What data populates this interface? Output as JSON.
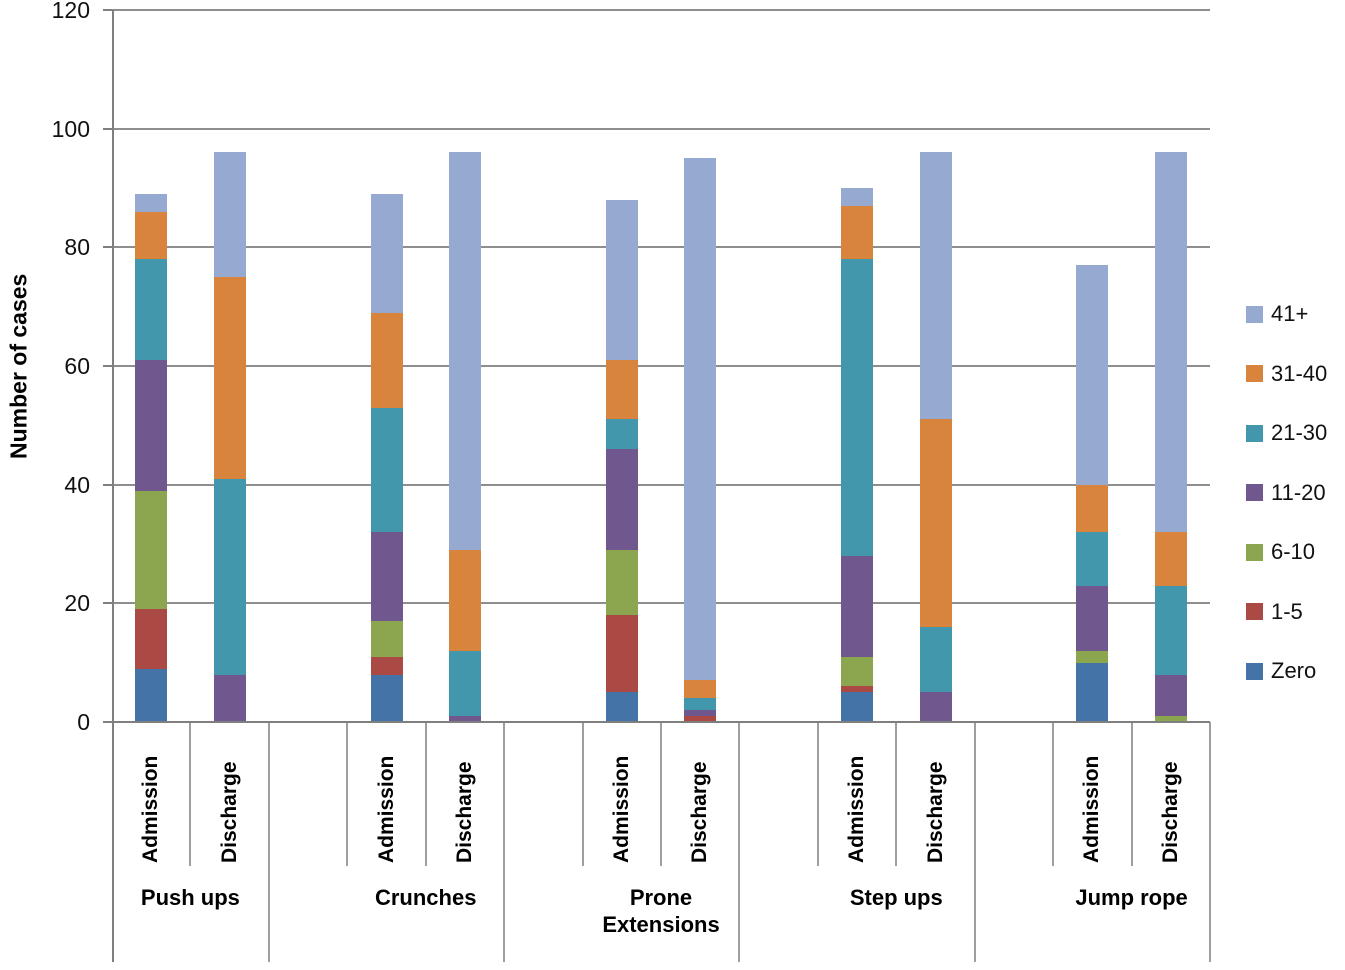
{
  "chart_data": {
    "type": "bar",
    "stacked": true,
    "ylabel": "Number of cases",
    "ylim": [
      0,
      120
    ],
    "yticks": [
      0,
      20,
      40,
      60,
      80,
      100,
      120
    ],
    "grid": true,
    "legend_position": "right",
    "groups": [
      "Push ups",
      "Crunches",
      "Prone Extensions",
      "Step ups",
      "Jump rope"
    ],
    "conditions": [
      "Admission",
      "Discharge"
    ],
    "series": [
      {
        "name": "Zero",
        "color": "#4473A8",
        "values": [
          [
            9,
            0
          ],
          [
            8,
            0
          ],
          [
            5,
            0
          ],
          [
            5,
            0
          ],
          [
            10,
            0
          ]
        ]
      },
      {
        "name": "1-5",
        "color": "#AB4A45",
        "values": [
          [
            10,
            0
          ],
          [
            3,
            0
          ],
          [
            13,
            1
          ],
          [
            1,
            0
          ],
          [
            0,
            0
          ]
        ]
      },
      {
        "name": "6-10",
        "color": "#8CA64F",
        "values": [
          [
            20,
            0
          ],
          [
            6,
            0
          ],
          [
            11,
            0
          ],
          [
            5,
            0
          ],
          [
            2,
            1
          ]
        ]
      },
      {
        "name": "11-20",
        "color": "#70578E",
        "values": [
          [
            22,
            8
          ],
          [
            15,
            1
          ],
          [
            17,
            1
          ],
          [
            17,
            5
          ],
          [
            11,
            7
          ]
        ]
      },
      {
        "name": "21-30",
        "color": "#4397AC",
        "values": [
          [
            17,
            33
          ],
          [
            21,
            11
          ],
          [
            5,
            2
          ],
          [
            50,
            11
          ],
          [
            9,
            15
          ]
        ]
      },
      {
        "name": "31-40",
        "color": "#D9843C",
        "values": [
          [
            8,
            34
          ],
          [
            16,
            17
          ],
          [
            10,
            3
          ],
          [
            9,
            35
          ],
          [
            8,
            9
          ]
        ]
      },
      {
        "name": "41+",
        "color": "#95A9D1",
        "values": [
          [
            3,
            21
          ],
          [
            20,
            67
          ],
          [
            27,
            88
          ],
          [
            3,
            45
          ],
          [
            37,
            64
          ]
        ]
      }
    ],
    "totals": {
      "Push ups": [
        89,
        96
      ],
      "Crunches": [
        89,
        96
      ],
      "Prone Extensions": [
        88,
        95
      ],
      "Step ups": [
        90,
        96
      ],
      "Jump rope": [
        77,
        96
      ]
    },
    "legend_order": [
      "41+",
      "31-40",
      "21-30",
      "11-20",
      "6-10",
      "1-5",
      "Zero"
    ],
    "colors": {
      "gridline": "#8E8E8E",
      "axis": "#7F7F7F",
      "category_divider": "#9E9E9E"
    }
  }
}
